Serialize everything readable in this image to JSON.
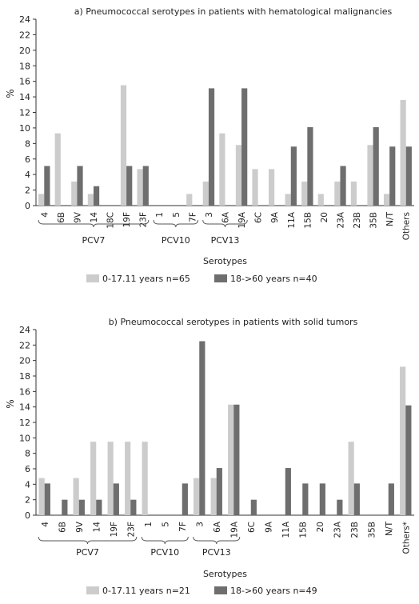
{
  "chart_data": [
    {
      "type": "bar",
      "title": "a) Pneumococcal serotypes in patients with hematological malignancies",
      "xlabel": "Serotypes",
      "ylabel": "%",
      "ylim": [
        0,
        24
      ],
      "yticks": [
        "0",
        "2",
        "4",
        "6",
        "8",
        "10",
        "12",
        "14",
        "16",
        "18",
        "20",
        "22",
        "24"
      ],
      "categories": [
        "4",
        "6B",
        "9V",
        "14",
        "18C",
        "19F",
        "23F",
        "1",
        "5",
        "7F",
        "3",
        "6A",
        "19A",
        "6C",
        "9A",
        "11A",
        "15B",
        "20",
        "23A",
        "23B",
        "35B",
        "N/T",
        "Others"
      ],
      "groups": [
        {
          "label": "PCV7",
          "from": 0,
          "to": 6
        },
        {
          "label": "PCV10",
          "from": 7,
          "to": 9
        },
        {
          "label": "PCV13",
          "from": 10,
          "to": 12
        }
      ],
      "series": [
        {
          "name": "0-17.11 years n=65",
          "color": "#cccccc",
          "values": [
            1.5,
            9.3,
            3.1,
            1.5,
            0,
            15.5,
            4.7,
            0,
            0,
            1.5,
            3.1,
            9.3,
            7.8,
            4.7,
            4.7,
            1.5,
            3.1,
            1.5,
            3.1,
            3.1,
            7.8,
            1.5,
            13.6
          ]
        },
        {
          "name": "18->60 years n=40",
          "color": "#6e6e6e",
          "values": [
            5.1,
            0,
            5.1,
            2.5,
            0,
            5.1,
            5.1,
            0,
            0,
            0,
            15.1,
            0,
            15.1,
            0,
            0,
            7.6,
            10.1,
            0,
            5.1,
            0,
            10.1,
            7.6,
            7.6
          ]
        }
      ],
      "legend": "bottom"
    },
    {
      "type": "bar",
      "title": "b) Pneumococcal serotypes in patients with solid tumors",
      "xlabel": "Serotypes",
      "ylabel": "%",
      "ylim": [
        0,
        24
      ],
      "yticks": [
        "0",
        "2",
        "4",
        "6",
        "8",
        "10",
        "12",
        "14",
        "16",
        "18",
        "20",
        "22",
        "24"
      ],
      "categories": [
        "4",
        "6B",
        "9V",
        "14",
        "19F",
        "23F",
        "1",
        "5",
        "7F",
        "3",
        "6A",
        "19A",
        "6C",
        "9A",
        "11A",
        "15B",
        "20",
        "23A",
        "23B",
        "35B",
        "N/T",
        "Others*"
      ],
      "groups": [
        {
          "label": "PCV7",
          "from": 0,
          "to": 5
        },
        {
          "label": "PCV10",
          "from": 6,
          "to": 8
        },
        {
          "label": "PCV13",
          "from": 9,
          "to": 11
        }
      ],
      "series": [
        {
          "name": "0-17.11 years n=21",
          "color": "#cccccc",
          "values": [
            4.8,
            0,
            4.8,
            9.5,
            9.5,
            9.5,
            9.5,
            0,
            0,
            4.8,
            4.8,
            14.3,
            0,
            0,
            0,
            0,
            0,
            0,
            9.5,
            0,
            0,
            19.2
          ]
        },
        {
          "name": "18->60 years n=49",
          "color": "#6e6e6e",
          "values": [
            4.1,
            2.0,
            2.0,
            2.0,
            4.1,
            2.0,
            0,
            0,
            4.1,
            22.5,
            6.1,
            14.3,
            2.0,
            0,
            6.1,
            4.1,
            4.1,
            2.0,
            4.1,
            0,
            4.1,
            14.2
          ]
        }
      ],
      "legend": "bottom"
    }
  ]
}
